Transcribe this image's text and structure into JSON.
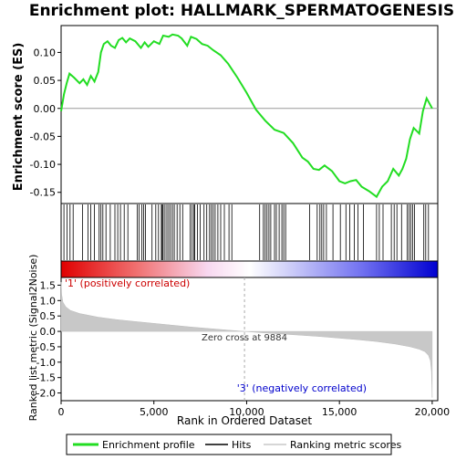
{
  "chart_data": {
    "type": "line",
    "title": "Enrichment plot: HALLMARK_SPERMATOGENESIS",
    "xlabel": "Rank in Ordered Dataset",
    "ylabel_top": "Enrichment score (ES)",
    "ylabel_bottom": "Ranked list metric (Signal2Noise)",
    "x_range": [
      0,
      20300
    ],
    "x_ticks": [
      "0",
      "5,000",
      "10,000",
      "15,000",
      "20,000"
    ],
    "x_tick_values": [
      0,
      5000,
      10000,
      15000,
      20000
    ],
    "es_ylim": [
      -0.17,
      0.148
    ],
    "es_ticks": [
      "0.10",
      "0.05",
      "0.00",
      "-0.05",
      "-0.10",
      "-0.15"
    ],
    "es_tick_values": [
      0.1,
      0.05,
      0.0,
      -0.05,
      -0.1,
      -0.15
    ],
    "metric_ylim": [
      -2.25,
      1.75
    ],
    "metric_ticks": [
      "1.5",
      "1.0",
      "0.5",
      "0.0",
      "-0.5",
      "-1.0",
      "-1.5",
      "-2.0"
    ],
    "metric_tick_values": [
      1.5,
      1.0,
      0.5,
      0.0,
      -0.5,
      -1.0,
      -1.5,
      -2.0
    ],
    "zero_cross": 9884,
    "zero_cross_label": "Zero cross at 9884",
    "pos_label": "'1' (positively correlated)",
    "neg_label": "'3' (negatively correlated)",
    "legend": [
      "Enrichment profile",
      "Hits",
      "Ranking metric scores"
    ],
    "colors": {
      "es_line": "#22dd22",
      "hits": "#000000",
      "metric_fill": "#c8c8c8",
      "pos_label": "#cc0000",
      "neg_label": "#0000cc"
    },
    "es_profile": {
      "x": [
        0,
        150,
        300,
        450,
        700,
        1000,
        1200,
        1400,
        1600,
        1800,
        2000,
        2150,
        2300,
        2500,
        2700,
        2900,
        3100,
        3300,
        3500,
        3700,
        4000,
        4300,
        4500,
        4700,
        5000,
        5300,
        5500,
        5800,
        6000,
        6300,
        6500,
        6800,
        7000,
        7300,
        7600,
        7900,
        8200,
        8600,
        9000,
        9500,
        10000,
        10500,
        11000,
        11500,
        12000,
        12500,
        13000,
        13300,
        13600,
        13900,
        14200,
        14600,
        15000,
        15300,
        15600,
        15900,
        16200,
        16600,
        17000,
        17300,
        17600,
        17900,
        18200,
        18400,
        18600,
        18800,
        19000,
        19300,
        19500,
        19700,
        20000
      ],
      "y": [
        -0.005,
        0.025,
        0.045,
        0.062,
        0.055,
        0.045,
        0.052,
        0.042,
        0.058,
        0.048,
        0.065,
        0.1,
        0.115,
        0.12,
        0.112,
        0.108,
        0.122,
        0.126,
        0.118,
        0.125,
        0.12,
        0.108,
        0.118,
        0.11,
        0.12,
        0.115,
        0.13,
        0.128,
        0.132,
        0.13,
        0.125,
        0.112,
        0.128,
        0.124,
        0.115,
        0.112,
        0.104,
        0.095,
        0.08,
        0.055,
        0.028,
        -0.002,
        -0.022,
        -0.038,
        -0.044,
        -0.062,
        -0.088,
        -0.095,
        -0.108,
        -0.11,
        -0.102,
        -0.112,
        -0.13,
        -0.134,
        -0.13,
        -0.128,
        -0.14,
        -0.148,
        -0.158,
        -0.14,
        -0.13,
        -0.108,
        -0.12,
        -0.108,
        -0.09,
        -0.055,
        -0.035,
        -0.045,
        -0.005,
        0.018,
        0.0
      ]
    },
    "hit_ranks": [
      150,
      320,
      480,
      650,
      1150,
      1450,
      1600,
      1800,
      2050,
      2150,
      2250,
      2420,
      2650,
      2900,
      3050,
      3200,
      3400,
      3600,
      4100,
      4200,
      4350,
      4450,
      4550,
      4900,
      5100,
      5250,
      5400,
      5450,
      5500,
      5600,
      5700,
      5800,
      5900,
      6000,
      6100,
      6250,
      6400,
      6550,
      6950,
      7050,
      7150,
      7200,
      7350,
      7500,
      7700,
      7850,
      8000,
      8100,
      8200,
      8300,
      8450,
      8600,
      8800,
      9050,
      9200,
      10700,
      10900,
      11000,
      11100,
      11200,
      11300,
      11500,
      11600,
      11750,
      11900,
      12000,
      12100,
      13400,
      13800,
      13950,
      14050,
      14150,
      14300,
      14650,
      15050,
      15350,
      15550,
      15800,
      16000,
      16300,
      17000,
      17150,
      17350,
      17800,
      17950,
      18100,
      18350,
      18650,
      18750,
      18850,
      18950,
      19050,
      19550,
      19650,
      19800
    ],
    "metric_curve": {
      "x": [
        0,
        30,
        100,
        250,
        500,
        1000,
        2000,
        3000,
        4000,
        5000,
        6000,
        7000,
        8000,
        9000,
        9884,
        11000,
        12000,
        13000,
        14000,
        15000,
        16000,
        17000,
        18000,
        18800,
        19300,
        19600,
        19800,
        19900,
        19960,
        20000
      ],
      "y": [
        1.6,
        1.2,
        0.95,
        0.8,
        0.68,
        0.58,
        0.46,
        0.38,
        0.32,
        0.26,
        0.2,
        0.14,
        0.09,
        0.04,
        0.0,
        -0.05,
        -0.09,
        -0.13,
        -0.17,
        -0.22,
        -0.27,
        -0.33,
        -0.41,
        -0.5,
        -0.58,
        -0.66,
        -0.78,
        -0.95,
        -1.3,
        -2.15
      ]
    }
  }
}
